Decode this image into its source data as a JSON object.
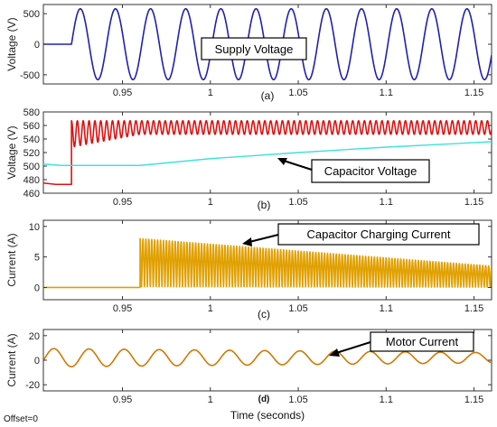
{
  "footer": {
    "offset_label": "Offset=0",
    "xlabel": "Time (seconds)"
  },
  "chart_data": [
    {
      "type": "line",
      "panel_label": "(a)",
      "ylabel": "Voltage (V)",
      "xlim": [
        0.905,
        1.16
      ],
      "ylim": [
        -650,
        650
      ],
      "xticks": [
        0.95,
        1,
        1.05,
        1.1,
        1.15
      ],
      "yticks": [
        -500,
        0,
        500
      ],
      "grid": false,
      "annotation": {
        "text": "Supply Voltage"
      },
      "series": [
        {
          "kind": "sine",
          "color": "#2020b0",
          "start": 0.921,
          "amplitude": 580,
          "frequency": 50,
          "phase": 0,
          "pre_value": 0
        }
      ]
    },
    {
      "type": "line",
      "panel_label": "(b)",
      "ylabel": "Voltage (V)",
      "xlim": [
        0.905,
        1.16
      ],
      "ylim": [
        460,
        580
      ],
      "xticks": [
        0.95,
        1,
        1.05,
        1.1,
        1.15
      ],
      "yticks": [
        460,
        480,
        500,
        520,
        540,
        560,
        580
      ],
      "grid": false,
      "annotation": {
        "text": "Capacitor Voltage"
      },
      "series": [
        {
          "kind": "rectified",
          "color": "#e01010",
          "pre_points": [
            [
              0.905,
              475
            ],
            [
              0.912,
              473
            ],
            [
              0.921,
              473
            ]
          ],
          "start": 0.921,
          "peak": 567,
          "trough": 547,
          "frequency": 300,
          "early_trough": 528,
          "settle_time": 0.96
        },
        {
          "kind": "polyline",
          "color": "#40e0e0",
          "points": [
            [
              0.905,
              503
            ],
            [
              0.915,
              501
            ],
            [
              0.96,
              501
            ],
            [
              1.0,
              511
            ],
            [
              1.05,
              520
            ],
            [
              1.1,
              528
            ],
            [
              1.16,
              536
            ]
          ]
        }
      ]
    },
    {
      "type": "line",
      "panel_label": "(c)",
      "ylabel": "Current (A)",
      "xlim": [
        0.905,
        1.16
      ],
      "ylim": [
        -2,
        11
      ],
      "xticks": [
        0.95,
        1,
        1.05,
        1.1,
        1.15
      ],
      "yticks": [
        0,
        5,
        10
      ],
      "grid": false,
      "annotation": {
        "text": "Capacitor Charging Current"
      },
      "series": [
        {
          "kind": "pulses",
          "color": "#e0a000",
          "start": 0.96,
          "frequency": 300,
          "peak_start": 8,
          "peak_end": 3.5,
          "pre_value": 0
        }
      ]
    },
    {
      "type": "line",
      "panel_label": "(d)",
      "ylabel": "Current (A)",
      "xlim": [
        0.905,
        1.16
      ],
      "ylim": [
        -25,
        25
      ],
      "xticks": [
        0.95,
        1,
        1.05,
        1.1,
        1.15
      ],
      "yticks": [
        -20,
        0,
        20
      ],
      "grid": false,
      "annotation": {
        "text": "Motor Current"
      },
      "series": [
        {
          "kind": "sine_decay",
          "color": "#d07800",
          "frequency": 50,
          "offset": 2,
          "amp_start": 7.5,
          "amp_end": 4.2,
          "phase": -0.3
        }
      ]
    }
  ]
}
